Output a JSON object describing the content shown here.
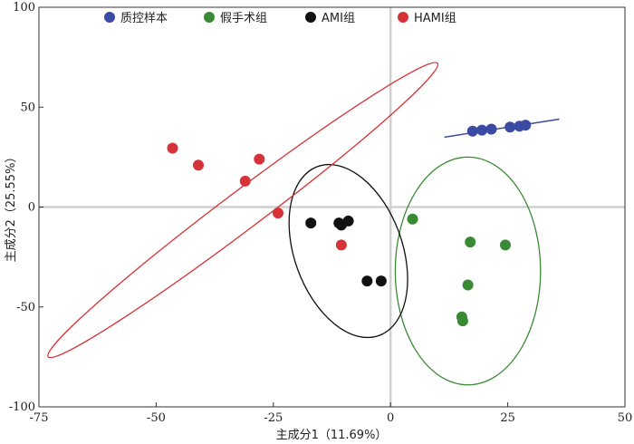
{
  "chart_data": {
    "type": "scatter",
    "xlabel": "主成分1（11.69%）",
    "ylabel": "主成分2（25.55%）",
    "xlim": [
      -75,
      50
    ],
    "ylim": [
      -100,
      100
    ],
    "xticks": [
      -75,
      -50,
      -25,
      0,
      25,
      50
    ],
    "yticks": [
      -100,
      -50,
      0,
      50,
      100
    ],
    "xtick_labels": [
      "-75",
      "-50",
      "-25",
      "0",
      "25",
      "50"
    ],
    "ytick_labels": [
      "-100",
      "-50",
      "0",
      "50",
      "100"
    ],
    "grid": false,
    "zero_lines": true,
    "legend_position": "top",
    "series": [
      {
        "name": "质控样本",
        "color": "#3b4ba3",
        "points": [
          [
            17.5,
            38
          ],
          [
            19.5,
            38.5
          ],
          [
            21.5,
            39
          ],
          [
            25.5,
            40
          ],
          [
            27.5,
            40.5
          ],
          [
            28.8,
            41
          ]
        ],
        "line": [
          [
            11.5,
            35
          ],
          [
            36,
            44
          ]
        ]
      },
      {
        "name": "假手术组",
        "color": "#3a8a35",
        "points": [
          [
            4.7,
            -6
          ],
          [
            17.0,
            -17.5
          ],
          [
            24.5,
            -19
          ],
          [
            16.5,
            -39
          ],
          [
            15.2,
            -55
          ],
          [
            15.4,
            -57
          ]
        ],
        "ellipse": {
          "cx": 16.5,
          "cy": -32,
          "rx": 15.5,
          "ry": 57,
          "angle": 0
        }
      },
      {
        "name": "AMI组",
        "color": "#111111",
        "points": [
          [
            -17,
            -8
          ],
          [
            -11,
            -8
          ],
          [
            -10.5,
            -9
          ],
          [
            -9,
            -7
          ],
          [
            -5,
            -37
          ],
          [
            -2,
            -37
          ]
        ],
        "ellipse": {
          "cx": -9,
          "cy": -22,
          "rx": 11.5,
          "ry": 45,
          "angle": -20
        }
      },
      {
        "name": "HAMI组",
        "color": "#d63338",
        "points": [
          [
            -46.5,
            29.5
          ],
          [
            -41,
            21
          ],
          [
            -31,
            13
          ],
          [
            -28,
            24
          ],
          [
            -24,
            -3
          ],
          [
            -10.5,
            -19
          ]
        ],
        "ellipse": {
          "cx": -31.5,
          "cy": -1.5,
          "rx": 52,
          "ry": 9.5,
          "angle": -37
        }
      }
    ]
  }
}
